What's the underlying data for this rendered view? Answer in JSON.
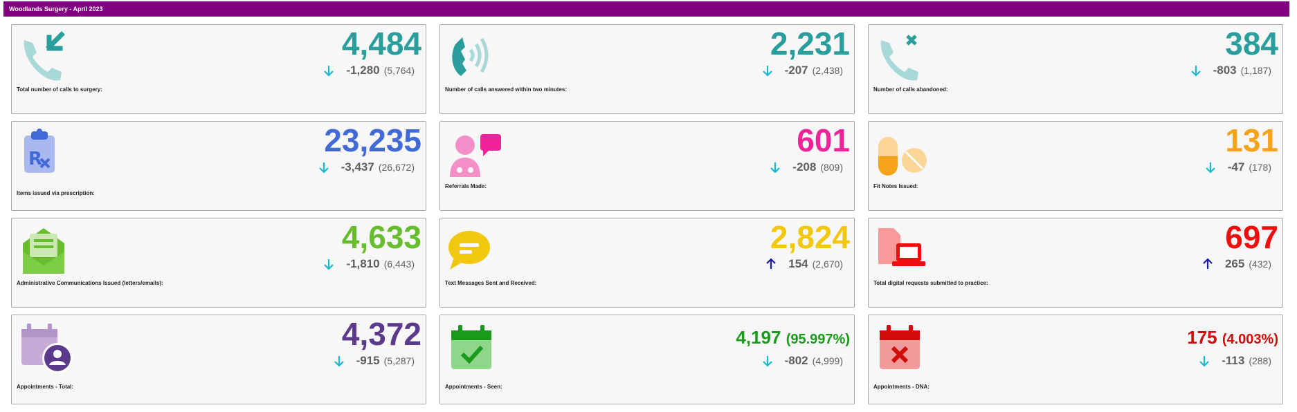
{
  "header": {
    "title": "Woodlands Surgery - April 2023"
  },
  "colors": {
    "header_bg": "#800080",
    "teal": "#2a9d9d",
    "blue": "#4169d8",
    "pink": "#f0239a",
    "orange": "#f5a31a",
    "green": "#68bd2f",
    "yellow": "#f2c80f",
    "red": "#ef0e0e",
    "purple": "#5b3a8c",
    "dark_green": "#1a9a1a",
    "dark_red": "#d10a0a",
    "arrow_down": "#19b8d2",
    "arrow_up": "#1a1aa8"
  },
  "cards": [
    {
      "value": "4,484",
      "change": "-1,280",
      "previous": "(5,764)",
      "direction": "down",
      "label": "Total number of calls to surgery:",
      "icon": "incoming-call-icon"
    },
    {
      "value": "2,231",
      "change": "-207",
      "previous": "(2,438)",
      "direction": "down",
      "label": "Number of calls answered within two minutes:",
      "icon": "ringing-phone-icon"
    },
    {
      "value": "384",
      "change": "-803",
      "previous": "(1,187)",
      "direction": "down",
      "label": "Number of calls abandoned:",
      "icon": "missed-call-icon"
    },
    {
      "value": "23,235",
      "change": "-3,437",
      "previous": "(26,672)",
      "direction": "down",
      "label": "Items issued via prescription:",
      "icon": "prescription-clipboard-icon"
    },
    {
      "value": "601",
      "change": "-208",
      "previous": "(809)",
      "direction": "down",
      "label": "Referrals Made:",
      "icon": "doctor-chat-icon"
    },
    {
      "value": "131",
      "change": "-47",
      "previous": "(178)",
      "direction": "down",
      "label": "Fit Notes Issued:",
      "icon": "pills-icon"
    },
    {
      "value": "4,633",
      "change": "-1,810",
      "previous": "(6,443)",
      "direction": "down",
      "label": "Administrative Communications Issued (letters/emails):",
      "icon": "open-envelope-icon"
    },
    {
      "value": "2,824",
      "change": "154",
      "previous": "(2,670)",
      "direction": "up",
      "label": "Text Messages Sent and Received:",
      "icon": "chat-bubble-icon"
    },
    {
      "value": "697",
      "change": "265",
      "previous": "(432)",
      "direction": "up",
      "label": "Total digital requests submitted to practice:",
      "icon": "document-laptop-icon"
    },
    {
      "value": "4,372",
      "change": "-915",
      "previous": "(5,287)",
      "direction": "down",
      "label": "Appointments - Total:",
      "icon": "calendar-user-icon"
    },
    {
      "value": "4,197",
      "value_pct": "(95.997%)",
      "change": "-802",
      "previous": "(4,999)",
      "direction": "down",
      "label": "Appointments - Seen:",
      "icon": "calendar-check-icon"
    },
    {
      "value": "175",
      "value_pct": "(4.003%)",
      "change": "-113",
      "previous": "(288)",
      "direction": "down",
      "label": "Appointments - DNA:",
      "icon": "calendar-cross-icon"
    }
  ]
}
